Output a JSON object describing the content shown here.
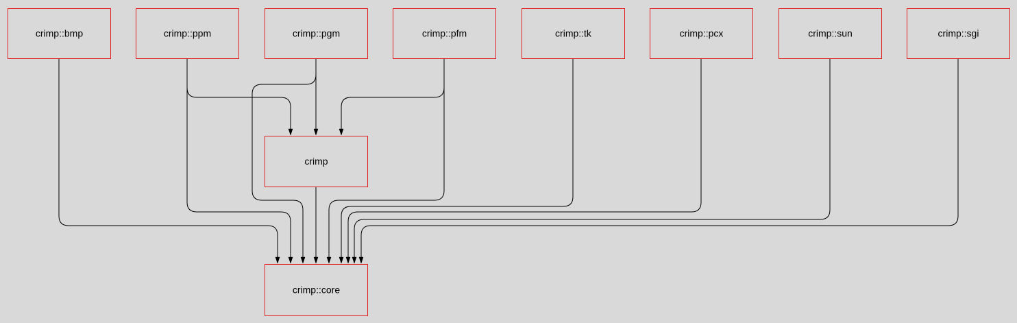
{
  "diagram": {
    "nodes": [
      {
        "id": "bmp",
        "label": "crimp::bmp"
      },
      {
        "id": "ppm",
        "label": "crimp::ppm"
      },
      {
        "id": "pgm",
        "label": "crimp::pgm"
      },
      {
        "id": "pfm",
        "label": "crimp::pfm"
      },
      {
        "id": "tk",
        "label": "crimp::tk"
      },
      {
        "id": "pcx",
        "label": "crimp::pcx"
      },
      {
        "id": "sun",
        "label": "crimp::sun"
      },
      {
        "id": "sgi",
        "label": "crimp::sgi"
      },
      {
        "id": "crimp",
        "label": "crimp"
      },
      {
        "id": "core",
        "label": "crimp::core"
      }
    ],
    "edges": [
      {
        "from": "ppm",
        "to": "crimp"
      },
      {
        "from": "pgm",
        "to": "crimp"
      },
      {
        "from": "pfm",
        "to": "crimp"
      },
      {
        "from": "bmp",
        "to": "core"
      },
      {
        "from": "ppm",
        "to": "core"
      },
      {
        "from": "pgm",
        "to": "core"
      },
      {
        "from": "crimp",
        "to": "core"
      },
      {
        "from": "pfm",
        "to": "core"
      },
      {
        "from": "tk",
        "to": "core"
      },
      {
        "from": "pcx",
        "to": "core"
      },
      {
        "from": "sun",
        "to": "core"
      },
      {
        "from": "sgi",
        "to": "core"
      }
    ],
    "colors": {
      "background": "#d9d9d9",
      "node_border": "#e0201f",
      "edge": "#000000"
    }
  }
}
